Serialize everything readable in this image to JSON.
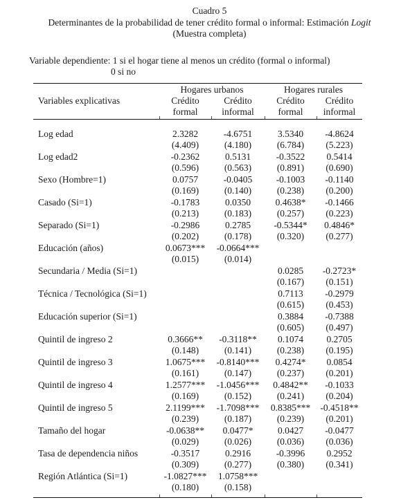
{
  "title": {
    "line1": "Cuadro 5",
    "line2_pre": "Determinantes de la probabilidad de tener crédito formal o informal: Estimación ",
    "line2_italic": "Logit",
    "line3": "(Muestra completa)"
  },
  "dependent_variable": {
    "line1": "Variable dependiente: 1 si el hogar tiene al menos un crédito (formal o informal)",
    "line2": "0 si no"
  },
  "table": {
    "col_header_label": "Variables explicativas",
    "group_headers": [
      "Hogares urbanos",
      "Hogares rurales"
    ],
    "sub_headers": [
      [
        "Crédito",
        "formal"
      ],
      [
        "Crédito",
        "informal"
      ],
      [
        "Crédito",
        "formal"
      ],
      [
        "Crédito",
        "informal"
      ]
    ],
    "rows": [
      {
        "label": "Log edad",
        "coef": [
          "2.3282",
          "-4.6751",
          "3.5340",
          "-4.8624"
        ],
        "se": [
          "(4.409)",
          "(4.180)",
          "(6.784)",
          "(5.223)"
        ]
      },
      {
        "label": "Log edad2",
        "coef": [
          "-0.2362",
          "0.5131",
          "-0.3522",
          "0.5414"
        ],
        "se": [
          "(0.596)",
          "(0.563)",
          "(0.891)",
          "(0.690)"
        ]
      },
      {
        "label": "Sexo (Hombre=1)",
        "coef": [
          "0.0757",
          "-0.0405",
          "-0.1003",
          "-0.1140"
        ],
        "se": [
          "(0.169)",
          "(0.140)",
          "(0.238)",
          "(0.200)"
        ]
      },
      {
        "label": "Casado (Si=1)",
        "coef": [
          "-0.1783",
          "0.0350",
          "0.4638*",
          "-0.1466"
        ],
        "se": [
          "(0.213)",
          "(0.183)",
          "(0.257)",
          "(0.223)"
        ]
      },
      {
        "label": "Separado (Si=1)",
        "coef": [
          "-0.2986",
          "0.2785",
          "-0.5344*",
          "0.4846*"
        ],
        "se": [
          "(0.202)",
          "(0.178)",
          "(0.320)",
          "(0.277)"
        ]
      },
      {
        "label": "Educación (años)",
        "coef": [
          "0.0673***",
          "-0.0664***",
          "",
          ""
        ],
        "se": [
          "(0.015)",
          "(0.014)",
          "",
          ""
        ]
      },
      {
        "label": "Secundaria / Media (Si=1)",
        "coef": [
          "",
          "",
          "0.0285",
          "-0.2723*"
        ],
        "se": [
          "",
          "",
          "(0.167)",
          "(0.151)"
        ]
      },
      {
        "label": "Técnica / Tecnológica (Si=1)",
        "coef": [
          "",
          "",
          "0.7113",
          "-0.2979"
        ],
        "se": [
          "",
          "",
          "(0.615)",
          "(0.453)"
        ]
      },
      {
        "label": "Educación superior (Si=1)",
        "coef": [
          "",
          "",
          "0.3884",
          "-0.7388"
        ],
        "se": [
          "",
          "",
          "(0.605)",
          "(0.497)"
        ]
      },
      {
        "label": "Quintil de ingreso 2",
        "coef": [
          "0.3666**",
          "-0.3118**",
          "0.1074",
          "0.2705"
        ],
        "se": [
          "(0.148)",
          "(0.141)",
          "(0.238)",
          "(0.195)"
        ]
      },
      {
        "label": "Quintil de ingreso 3",
        "coef": [
          "1.0675***",
          "-0.8140***",
          "0.4274*",
          "0.0854"
        ],
        "se": [
          "(0.161)",
          "(0.147)",
          "(0.237)",
          "(0.201)"
        ]
      },
      {
        "label": "Quintil de ingreso 4",
        "coef": [
          "1.2577***",
          "-1.0456***",
          "0.4842**",
          "-0.1033"
        ],
        "se": [
          "(0.169)",
          "(0.152)",
          "(0.241)",
          "(0.204)"
        ]
      },
      {
        "label": "Quintil de ingreso 5",
        "coef": [
          "2.1199***",
          "-1.7098***",
          "0.8385***",
          "-0.4518**"
        ],
        "se": [
          "(0.239)",
          "(0.187)",
          "(0.239)",
          "(0.201)"
        ]
      },
      {
        "label": "Tamaño del hogar",
        "coef": [
          "-0.0638**",
          "0.0477*",
          "0.0427",
          "-0.0477"
        ],
        "se": [
          "(0.029)",
          "(0.026)",
          "(0.036)",
          "(0.036)"
        ]
      },
      {
        "label": "Tasa de dependencia niños",
        "coef": [
          "-0.3517",
          "0.2916",
          "-0.3996",
          "0.2952"
        ],
        "se": [
          "(0.309)",
          "(0.277)",
          "(0.380)",
          "(0.341)"
        ]
      },
      {
        "label": "Región Atlántica (Si=1)",
        "coef": [
          "-1.0827***",
          "1.0758***",
          "",
          ""
        ],
        "se": [
          "(0.180)",
          "(0.158)",
          "",
          ""
        ]
      }
    ]
  }
}
